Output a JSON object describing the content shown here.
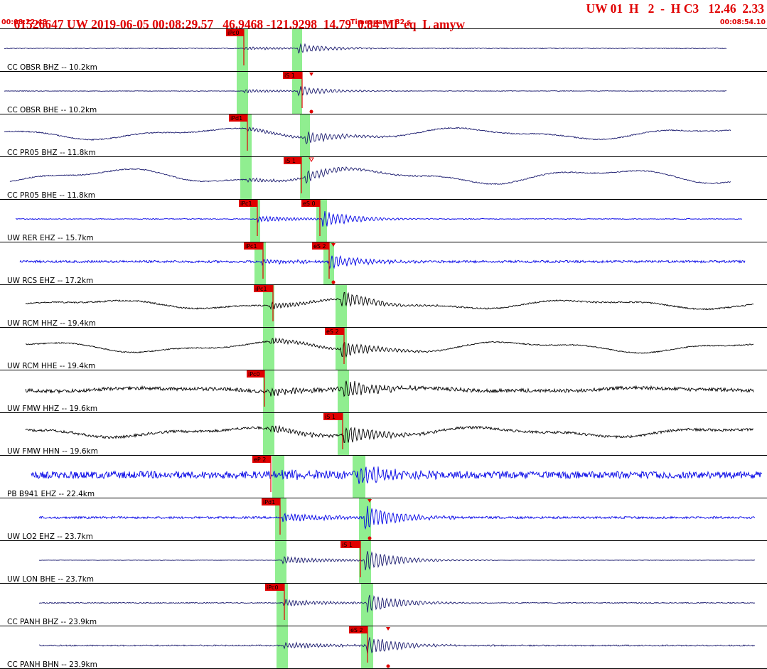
{
  "header": {
    "event_info": "61526647 UW 2019-06-05 00:08:29.57   46.9468 -121.9298  14.79  0.84 Ml  eq  L amyw",
    "event_extra": "UW 01  H   2  -  H C3   12.46  2.33",
    "start_time": "00:08:22.48",
    "timespan": "Timespan=  32 s",
    "end_time": "00:08:54.10"
  },
  "colors": {
    "header_red": "#e00000",
    "pick_red": "#e00000",
    "highlight_green": "#90ee90",
    "trace_navy": "#1a1a6e",
    "trace_blue": "#0000e6",
    "trace_black": "#000000"
  },
  "traces": [
    {
      "label": "CC OBSR BHZ -- 10.2km",
      "color": "navy",
      "amp": 4,
      "low": 0,
      "noise": 0.6,
      "p_pick": "iPc0",
      "s_pick": "",
      "s_marker": "none"
    },
    {
      "label": "CC OBSR BHE -- 10.2km",
      "color": "navy",
      "amp": 4,
      "low": 0,
      "noise": 0.4,
      "p_pick": "",
      "s_pick": "iS 1",
      "s_marker": "down"
    },
    {
      "label": "CC PR05 BHZ -- 11.8km",
      "color": "navy",
      "amp": 5,
      "low": 6,
      "noise": 0.8,
      "p_pick": "iPd1",
      "s_pick": "",
      "s_marker": "none"
    },
    {
      "label": "CC PR05 BHE -- 11.8km",
      "color": "navy",
      "amp": 5,
      "low": 8,
      "noise": 0.8,
      "p_pick": "",
      "s_pick": "iS 1",
      "s_marker": "open"
    },
    {
      "label": "UW RER EHZ -- 15.7km",
      "color": "blue",
      "amp": 7,
      "low": 0,
      "noise": 0.5,
      "p_pick": "iPc1",
      "s_pick": "eS 0",
      "s_marker": "none"
    },
    {
      "label": "UW RCS EHZ -- 17.2km",
      "color": "blue",
      "amp": 6,
      "low": 0,
      "noise": 1.6,
      "p_pick": "iPc1",
      "s_pick": "eS 2",
      "s_marker": "down"
    },
    {
      "label": "UW RCM HHZ -- 19.4km",
      "color": "black",
      "amp": 7,
      "low": 5,
      "noise": 1.0,
      "p_pick": "iPc1",
      "s_pick": "",
      "s_marker": "none"
    },
    {
      "label": "UW RCM HHE -- 19.4km",
      "color": "black",
      "amp": 7,
      "low": 6,
      "noise": 0.8,
      "p_pick": "",
      "s_pick": "eS 2",
      "s_marker": "none"
    },
    {
      "label": "UW FMW HHZ -- 19.6km",
      "color": "black",
      "amp": 8,
      "low": 2,
      "noise": 2.5,
      "p_pick": "iPc0",
      "s_pick": "",
      "s_marker": "none"
    },
    {
      "label": "UW FMW HHN -- 19.6km",
      "color": "black",
      "amp": 8,
      "low": 5,
      "noise": 1.8,
      "p_pick": "",
      "s_pick": "iS 1",
      "s_marker": "none"
    },
    {
      "label": "PB B941 EHZ -- 22.4km",
      "color": "blue",
      "amp": 8,
      "low": 0,
      "noise": 5.0,
      "p_pick": "eP 2",
      "s_pick": "",
      "s_marker": "none"
    },
    {
      "label": "UW LO2 EHZ -- 23.7km",
      "color": "blue",
      "amp": 10,
      "low": 0,
      "noise": 1.5,
      "p_pick": "iPd1",
      "s_pick": "",
      "s_marker": "down"
    },
    {
      "label": "UW LON BHE -- 23.7km",
      "color": "navy",
      "amp": 9,
      "low": 0,
      "noise": 0.3,
      "p_pick": "",
      "s_pick": "iS 1",
      "s_marker": "none"
    },
    {
      "label": "CC PANH BHZ -- 23.9km",
      "color": "navy",
      "amp": 8,
      "low": 0,
      "noise": 0.7,
      "p_pick": "iPc0",
      "s_pick": "",
      "s_marker": "none"
    },
    {
      "label": "CC PANH BHN -- 23.9km",
      "color": "navy",
      "amp": 8,
      "low": 0,
      "noise": 0.9,
      "p_pick": "",
      "s_pick": "eS 2",
      "s_marker": "down"
    }
  ]
}
